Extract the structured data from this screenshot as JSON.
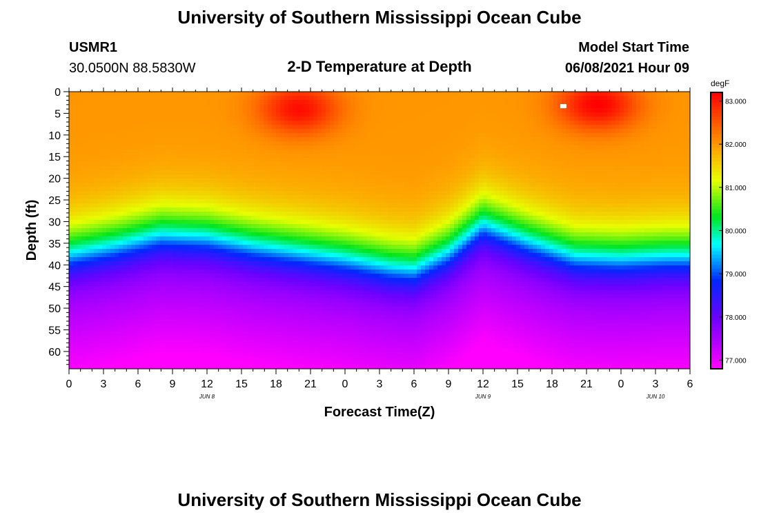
{
  "header": {
    "top_title": "University of Southern Mississippi Ocean Cube",
    "bottom_title": "University of Southern Mississippi Ocean Cube",
    "station": "USMR1",
    "coords": "30.0500N  88.5830W",
    "start_label": "Model Start Time",
    "start_value": "06/08/2021 Hour 09"
  },
  "chart_data": {
    "type": "heatmap",
    "title": "2-D Temperature at Depth",
    "xlabel": "Forecast Time(Z)",
    "ylabel": "Depth (ft)",
    "x_ticks": [
      "0",
      "3",
      "6",
      "9",
      "12",
      "15",
      "18",
      "21",
      "0",
      "3",
      "6",
      "9",
      "12",
      "15",
      "18",
      "21",
      "0",
      "3",
      "6"
    ],
    "x_range_hours": [
      0,
      54
    ],
    "date_labels": [
      {
        "text": "JUN 8",
        "hour": 12
      },
      {
        "text": "JUN 9",
        "hour": 36
      },
      {
        "text": "JUN 10",
        "hour": 51
      }
    ],
    "y_ticks": [
      0,
      5,
      10,
      15,
      20,
      25,
      30,
      35,
      40,
      45,
      50,
      55,
      60
    ],
    "y_range_ft": [
      0,
      64
    ],
    "colorbar": {
      "unit": "degF",
      "min": 76.8,
      "max": 83.2,
      "ticks": [
        "77.000",
        "78.000",
        "79.000",
        "80.000",
        "81.000",
        "82.000",
        "83.000"
      ]
    },
    "thermocline_profile": {
      "hours": [
        0,
        4,
        8,
        12,
        16,
        20,
        24,
        28,
        30,
        33,
        36,
        40,
        44,
        48,
        52,
        54
      ],
      "depth_ft": [
        39.5,
        37.5,
        35.0,
        35.5,
        37.5,
        39.0,
        40.5,
        42.5,
        43.0,
        39.0,
        32.5,
        36.5,
        40.0,
        40.5,
        40.0,
        40.0
      ]
    },
    "surface_hot_spots": [
      {
        "hour": 20,
        "depth_ft": 4,
        "temp_f": 83.1
      },
      {
        "hour": 46,
        "depth_ft": 3,
        "temp_f": 83.2
      }
    ]
  }
}
